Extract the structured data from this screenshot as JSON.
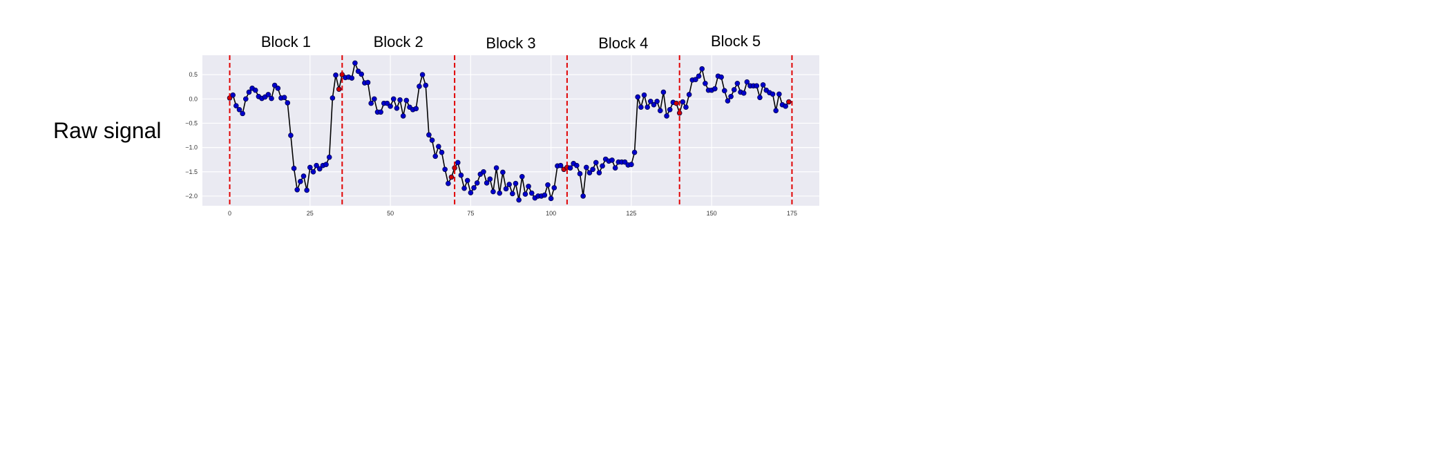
{
  "row_label": "Raw signal",
  "chart_data": {
    "type": "line",
    "title": "",
    "xlabel": "",
    "ylabel": "",
    "xlim": [
      -8.5,
      183.5
    ],
    "ylim": [
      -2.2,
      0.9
    ],
    "xticks": [
      0,
      25,
      50,
      75,
      100,
      125,
      150,
      175
    ],
    "xtick_labels": [
      "0",
      "25",
      "50",
      "75",
      "100",
      "125",
      "150",
      "175"
    ],
    "yticks": [
      0.5,
      0.0,
      -0.5,
      -1.0,
      -1.5,
      -2.0
    ],
    "ytick_labels": [
      "0.5",
      "0.0",
      "−0.5",
      "−1.0",
      "−1.5",
      "−2.0"
    ],
    "grid": true,
    "background_color": "#eaeaf2",
    "line_color": "#000000",
    "marker_color": "#0000cc",
    "boundary_marker_color": "#cc0000",
    "boundary_line_color": "#e00000",
    "block_boundaries": [
      0,
      35,
      70,
      105,
      140,
      175
    ],
    "blocks": [
      {
        "label": "Block 1"
      },
      {
        "label": "Block 2"
      },
      {
        "label": "Block 3"
      },
      {
        "label": "Block 4"
      },
      {
        "label": "Block 5"
      }
    ],
    "series": [
      {
        "x_start": 0,
        "values": [
          0.02,
          0.08,
          -0.14,
          -0.22,
          -0.3,
          0.0,
          0.14,
          0.22,
          0.18,
          0.05,
          0.01,
          0.04,
          0.09,
          0.01,
          0.28,
          0.22,
          0.02,
          0.03,
          -0.08,
          -0.75,
          -1.43,
          -1.87,
          -1.7,
          -1.59,
          -1.88,
          -1.41,
          -1.5,
          -1.37,
          -1.44,
          -1.37,
          -1.35,
          -1.2,
          0.02,
          0.49,
          0.2,
          0.5,
          0.44,
          0.45,
          0.43,
          0.74,
          0.57,
          0.51,
          0.33,
          0.34,
          -0.09,
          0.0,
          -0.27,
          -0.27,
          -0.09,
          -0.09,
          -0.15,
          0.0,
          -0.19,
          -0.02,
          -0.35,
          -0.03,
          -0.17,
          -0.22,
          -0.2,
          0.26,
          0.5,
          0.28,
          -0.74,
          -0.85,
          -1.18,
          -0.98,
          -1.1,
          -1.45,
          -1.74,
          -1.61,
          -1.42,
          -1.31,
          -1.57,
          -1.84,
          -1.68,
          -1.93,
          -1.83,
          -1.73,
          -1.55,
          -1.5,
          -1.73,
          -1.65,
          -1.91,
          -1.42,
          -1.94,
          -1.51,
          -1.85,
          -1.76,
          -1.95,
          -1.74,
          -2.08,
          -1.6,
          -1.96,
          -1.8,
          -1.94,
          -2.04,
          -2.0,
          -2.0,
          -1.98,
          -1.77,
          -2.05,
          -1.83,
          -1.38,
          -1.37,
          -1.45,
          -1.41,
          -1.42,
          -1.33,
          -1.37,
          -1.54,
          -2.0,
          -1.41,
          -1.52,
          -1.45,
          -1.31,
          -1.52,
          -1.38,
          -1.24,
          -1.28,
          -1.26,
          -1.42,
          -1.3,
          -1.3,
          -1.3,
          -1.36,
          -1.35,
          -1.1,
          0.04,
          -0.17,
          0.08,
          -0.17,
          -0.05,
          -0.12,
          -0.05,
          -0.24,
          0.14,
          -0.35,
          -0.22,
          -0.07,
          -0.09,
          -0.29,
          -0.06,
          -0.17,
          0.09,
          0.39,
          0.4,
          0.47,
          0.62,
          0.32,
          0.18,
          0.18,
          0.21,
          0.47,
          0.45,
          0.17,
          -0.04,
          0.05,
          0.19,
          0.32,
          0.14,
          0.12,
          0.35,
          0.27,
          0.27,
          0.27,
          0.03,
          0.29,
          0.18,
          0.13,
          0.1,
          -0.24,
          0.1,
          -0.12,
          -0.15,
          -0.06
        ]
      }
    ]
  }
}
